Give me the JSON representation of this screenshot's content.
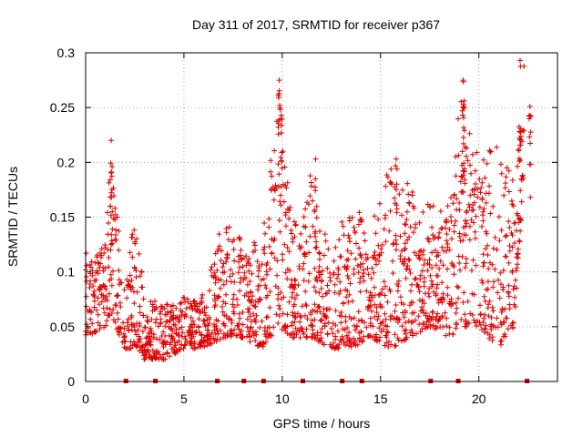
{
  "chart_data": {
    "type": "scatter",
    "title": "Day 311 of 2017, SRMTID for receiver p367",
    "xlabel": "GPS time / hours",
    "ylabel": "SRMTID / TECUs",
    "xlim": [
      0,
      24
    ],
    "ylim": [
      0,
      0.3
    ],
    "x_ticks": [
      0,
      5,
      10,
      15,
      20
    ],
    "y_ticks": [
      0,
      0.05,
      0.1,
      0.15,
      0.2,
      0.25,
      0.3
    ],
    "x_tick_labels": [
      "0",
      "5",
      "10",
      "15",
      "20"
    ],
    "y_tick_labels": [
      "0",
      "0.05",
      "0.1",
      "0.15",
      "0.2",
      "0.25",
      "0.3"
    ],
    "grid": true,
    "marker": "+",
    "marker_color": "#e00000",
    "series": [
      {
        "name": "SRMTID",
        "note": "dense point cloud approximated by sampled envelope",
        "envelope": [
          {
            "x": 0.0,
            "y_low": 0.04,
            "y_high": 0.12
          },
          {
            "x": 1.0,
            "y_low": 0.05,
            "y_high": 0.13
          },
          {
            "x": 1.3,
            "y_low": 0.06,
            "y_high": 0.22
          },
          {
            "x": 2.0,
            "y_low": 0.03,
            "y_high": 0.08
          },
          {
            "x": 2.5,
            "y_low": 0.03,
            "y_high": 0.16
          },
          {
            "x": 3.0,
            "y_low": 0.02,
            "y_high": 0.08
          },
          {
            "x": 4.0,
            "y_low": 0.02,
            "y_high": 0.07
          },
          {
            "x": 5.0,
            "y_low": 0.03,
            "y_high": 0.08
          },
          {
            "x": 6.0,
            "y_low": 0.03,
            "y_high": 0.08
          },
          {
            "x": 7.0,
            "y_low": 0.04,
            "y_high": 0.15
          },
          {
            "x": 8.0,
            "y_low": 0.04,
            "y_high": 0.13
          },
          {
            "x": 9.0,
            "y_low": 0.03,
            "y_high": 0.13
          },
          {
            "x": 9.8,
            "y_low": 0.05,
            "y_high": 0.28
          },
          {
            "x": 10.5,
            "y_low": 0.04,
            "y_high": 0.14
          },
          {
            "x": 11.5,
            "y_low": 0.04,
            "y_high": 0.2
          },
          {
            "x": 12.5,
            "y_low": 0.03,
            "y_high": 0.12
          },
          {
            "x": 13.5,
            "y_low": 0.03,
            "y_high": 0.17
          },
          {
            "x": 14.5,
            "y_low": 0.04,
            "y_high": 0.14
          },
          {
            "x": 15.5,
            "y_low": 0.03,
            "y_high": 0.2
          },
          {
            "x": 16.5,
            "y_low": 0.04,
            "y_high": 0.18
          },
          {
            "x": 17.5,
            "y_low": 0.05,
            "y_high": 0.16
          },
          {
            "x": 18.5,
            "y_low": 0.04,
            "y_high": 0.17
          },
          {
            "x": 19.2,
            "y_low": 0.05,
            "y_high": 0.28
          },
          {
            "x": 20.0,
            "y_low": 0.05,
            "y_high": 0.2
          },
          {
            "x": 21.0,
            "y_low": 0.03,
            "y_high": 0.22
          },
          {
            "x": 21.8,
            "y_low": 0.05,
            "y_high": 0.18
          },
          {
            "x": 22.3,
            "y_low": 0.19,
            "y_high": 0.29
          }
        ],
        "spikes": [
          {
            "x": 1.3,
            "y": 0.22
          },
          {
            "x": 9.85,
            "y": 0.275
          },
          {
            "x": 9.95,
            "y": 0.243
          },
          {
            "x": 11.7,
            "y": 0.203
          },
          {
            "x": 15.8,
            "y": 0.203
          },
          {
            "x": 19.2,
            "y": 0.275
          },
          {
            "x": 19.25,
            "y": 0.256
          },
          {
            "x": 22.1,
            "y": 0.293
          },
          {
            "x": 22.6,
            "y": 0.251
          }
        ]
      }
    ],
    "baseline_markers_x": [
      2.05,
      3.55,
      6.7,
      8.05,
      9.05,
      11.05,
      13.05,
      14.05,
      17.55,
      18.95,
      22.45
    ]
  }
}
